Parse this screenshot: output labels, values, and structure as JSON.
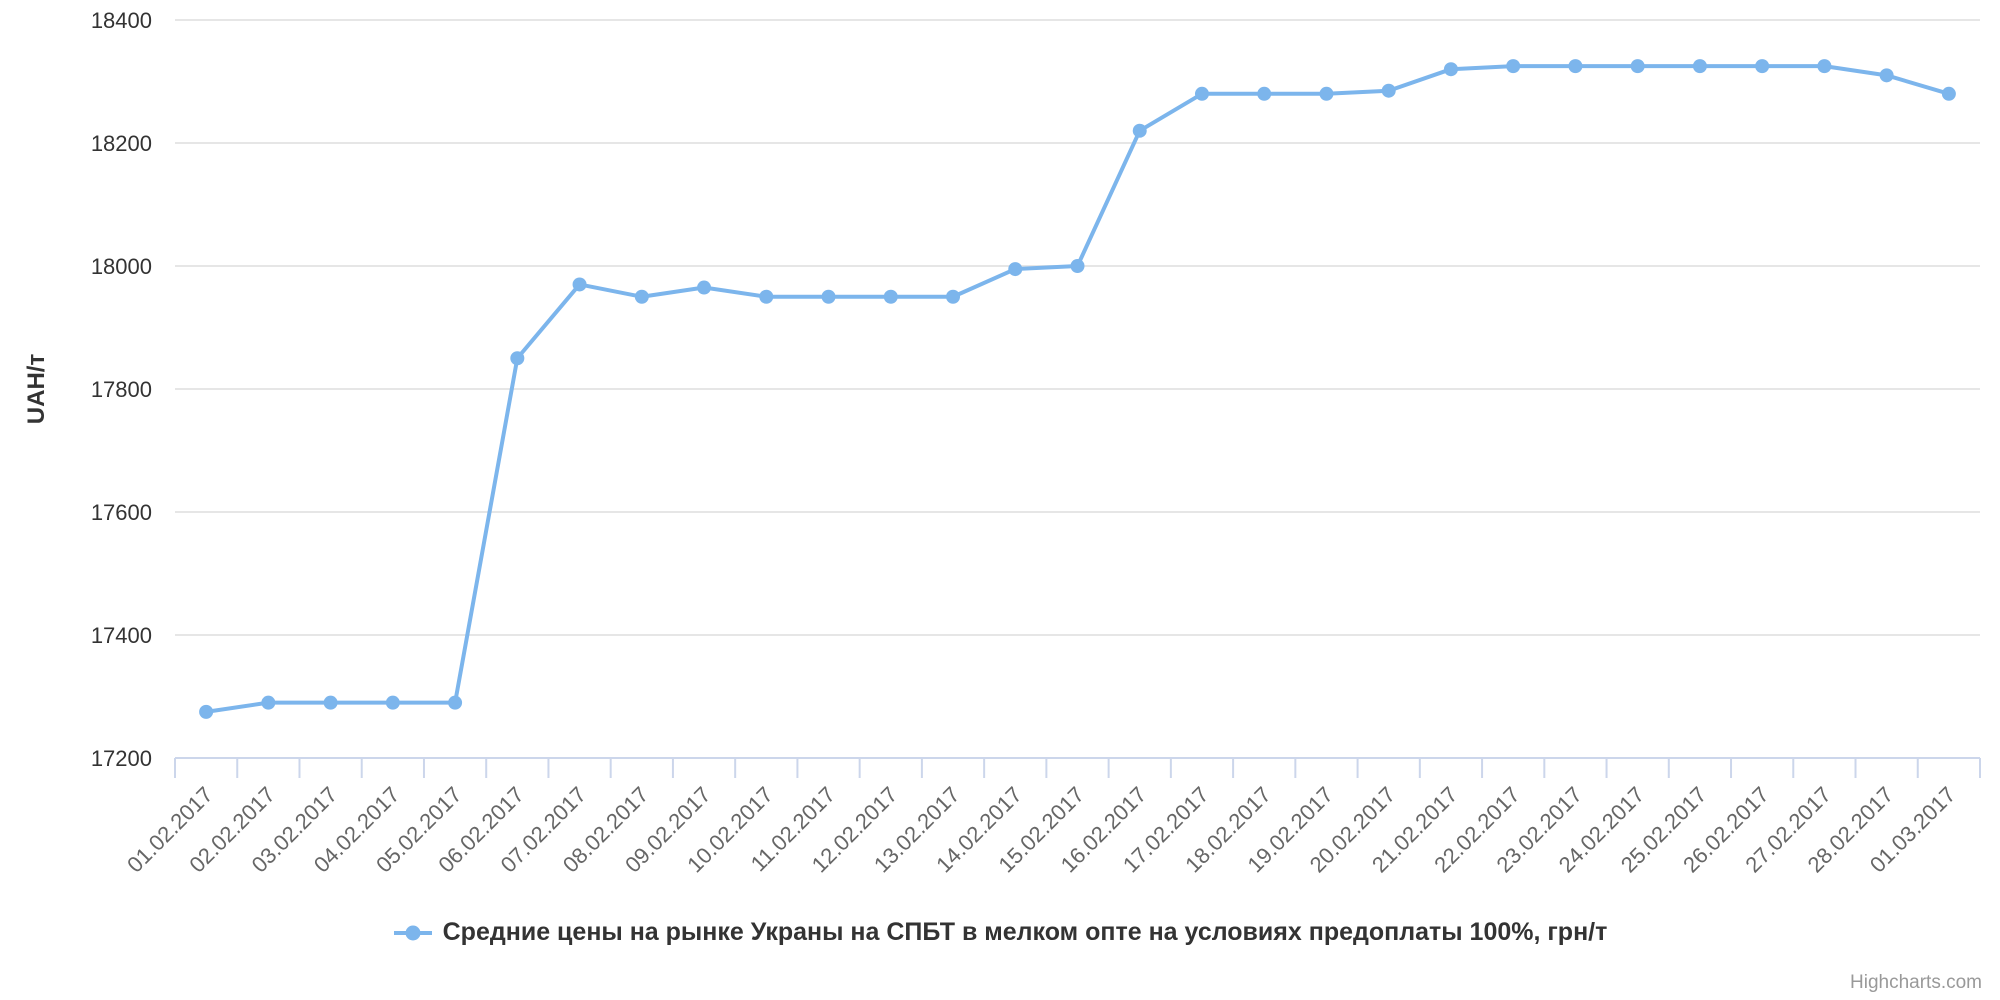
{
  "chart_data": {
    "type": "line",
    "title": "",
    "categories": [
      "01.02.2017",
      "02.02.2017",
      "03.02.2017",
      "04.02.2017",
      "05.02.2017",
      "06.02.2017",
      "07.02.2017",
      "08.02.2017",
      "09.02.2017",
      "10.02.2017",
      "11.02.2017",
      "12.02.2017",
      "13.02.2017",
      "14.02.2017",
      "15.02.2017",
      "16.02.2017",
      "17.02.2017",
      "18.02.2017",
      "19.02.2017",
      "20.02.2017",
      "21.02.2017",
      "22.02.2017",
      "23.02.2017",
      "24.02.2017",
      "25.02.2017",
      "26.02.2017",
      "27.02.2017",
      "28.02.2017",
      "01.03.2017"
    ],
    "series": [
      {
        "name": "Средние цены на рынке Украны на СПБТ в мелком опте на условиях предоплаты 100%, грн/т",
        "values": [
          17275,
          17290,
          17290,
          17290,
          17290,
          17850,
          17970,
          17950,
          17965,
          17950,
          17950,
          17950,
          17950,
          17995,
          18000,
          18220,
          18280,
          18280,
          18280,
          18285,
          18320,
          18325,
          18325,
          18325,
          18325,
          18325,
          18325,
          18310,
          18280
        ],
        "color": "#7cb5ec"
      }
    ],
    "xlabel": "",
    "ylabel": "UAH/т",
    "ylim": [
      17200,
      18400
    ],
    "ytick_step": 200,
    "ytick_labels": [
      "17200",
      "17400",
      "17600",
      "17800",
      "18000",
      "18200",
      "18400"
    ],
    "grid": true,
    "grid_color": "#e6e6e6",
    "axis_color": "#ccd6eb",
    "xlabel_rotation": -45,
    "legend_position": "bottom-center"
  },
  "credits": {
    "label": "Highcharts.com"
  }
}
